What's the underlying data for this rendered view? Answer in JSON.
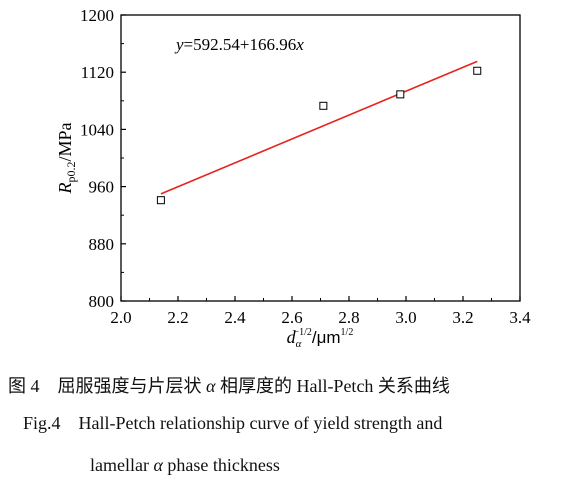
{
  "chart_data": {
    "type": "scatter",
    "xlim": [
      2.0,
      3.4
    ],
    "ylim": [
      800,
      1200
    ],
    "x_ticks": [
      "2.0",
      "2.2",
      "2.4",
      "2.6",
      "2.8",
      "3.0",
      "3.2",
      "3.4"
    ],
    "y_ticks": [
      "800",
      "880",
      "960",
      "1040",
      "1120",
      "1200"
    ],
    "series": [
      {
        "points": [
          {
            "x": 2.14,
            "y": 941
          },
          {
            "x": 2.71,
            "y": 1073
          },
          {
            "x": 2.98,
            "y": 1089
          },
          {
            "x": 3.25,
            "y": 1122
          }
        ],
        "marker": "open-square",
        "color": "#000000"
      }
    ],
    "fit_line": {
      "intercept": 592.54,
      "slope": 166.96,
      "x_range": [
        2.14,
        3.25
      ],
      "color": "#e8221d"
    },
    "annotation": {
      "var_y": "y",
      "equation_body": "=592.54+166.96",
      "var_x": "x"
    },
    "ylabel": {
      "symbol": "R",
      "subscript": "p0.2",
      "unit": "/MPa"
    },
    "xlabel": {
      "symbol": "d",
      "subscript": "α",
      "superscript": "−1/2",
      "unit": "/μm",
      "unit_superscript": "1/2"
    }
  },
  "caption": {
    "cn_prefix": "图 4",
    "cn_text_1": "屈服强度与片层状 ",
    "cn_alpha": "α",
    "cn_text_2": " 相厚度的 Hall-Petch 关系曲线",
    "en_prefix": "Fig.4",
    "en_line1": "Hall-Petch relationship curve of yield strength and",
    "en_line2_a": "lamellar ",
    "en_alpha": "α",
    "en_line2_b": " phase thickness"
  }
}
